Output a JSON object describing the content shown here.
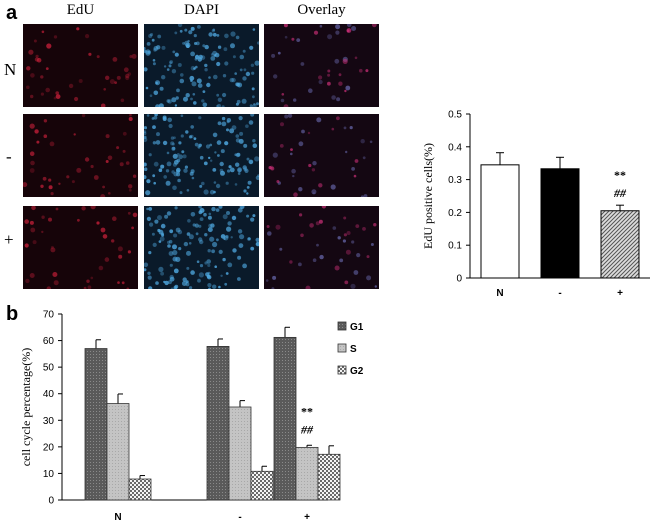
{
  "panels": {
    "a": "a",
    "b": "b"
  },
  "micrographs": {
    "columns": [
      "EdU",
      "DAPI",
      "Overlay"
    ],
    "rows": [
      "N",
      "-",
      "+"
    ]
  },
  "chart_data": [
    {
      "type": "bar",
      "ylabel": "EdU positive cells(%)",
      "categories": [
        "N",
        "-",
        "+"
      ],
      "values": [
        0.345,
        0.333,
        0.205
      ],
      "errors": [
        0.037,
        0.035,
        0.017
      ],
      "ylim": [
        0,
        0.5
      ],
      "yticks": [
        "0",
        "0.1",
        "0.2",
        "0.3",
        "0.4",
        "0.5"
      ],
      "annotations": [
        {
          "category": "+",
          "text": [
            "**",
            "##"
          ]
        }
      ],
      "colors": [
        "#ffffff",
        "#000000",
        "#bbbbbb"
      ]
    },
    {
      "type": "bar",
      "ylabel": "cell cycle percentage(%)",
      "categories": [
        "N",
        "-",
        "+"
      ],
      "series": [
        {
          "name": "G1",
          "values": [
            57.0,
            57.8,
            61.2
          ],
          "errors": [
            3.3,
            2.8,
            3.8
          ],
          "color": "#666666"
        },
        {
          "name": "S",
          "values": [
            36.3,
            35.0,
            19.8
          ],
          "errors": [
            3.6,
            2.4,
            0.8
          ],
          "color": "#c4c4c4"
        },
        {
          "name": "G2",
          "values": [
            7.9,
            10.8,
            17.2
          ],
          "errors": [
            1.3,
            1.9,
            3.2
          ],
          "color": "#e0e0e0"
        }
      ],
      "ylim": [
        0,
        70
      ],
      "yticks": [
        "0",
        "10",
        "20",
        "30",
        "40",
        "50",
        "60",
        "70"
      ],
      "annotations": [
        {
          "category": "+",
          "series": "S",
          "text": [
            "**",
            "##"
          ]
        }
      ],
      "legend": "right"
    }
  ]
}
